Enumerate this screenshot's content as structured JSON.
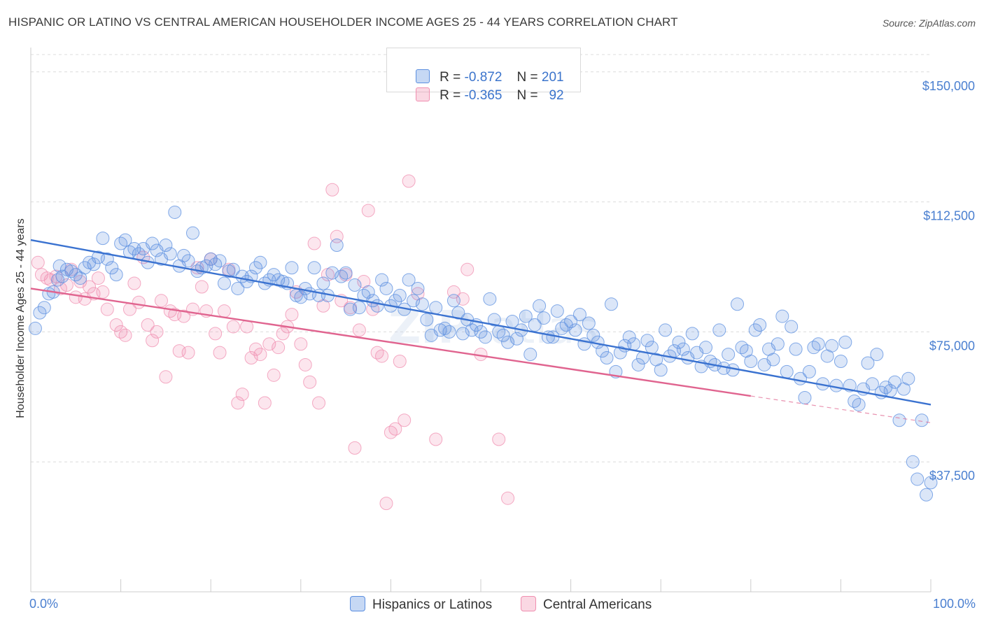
{
  "header": {
    "title": "HISPANIC OR LATINO VS CENTRAL AMERICAN HOUSEHOLDER INCOME AGES 25 - 44 YEARS CORRELATION CHART",
    "source": "Source: ZipAtlas.com"
  },
  "legend": {
    "r_label": "R =",
    "n_label": "N =",
    "rows": [
      {
        "r": "-0.872",
        "n": "201",
        "color": "#5b8fe0"
      },
      {
        "r": "-0.365",
        "n": "92",
        "color": "#f08fb0"
      }
    ]
  },
  "bottom_legend": [
    {
      "label": "Hispanics or Latinos",
      "color": "#5b8fe0"
    },
    {
      "label": "Central Americans",
      "color": "#f08fb0"
    }
  ],
  "chart_data": {
    "type": "scatter",
    "title": "HISPANIC OR LATINO VS CENTRAL AMERICAN HOUSEHOLDER INCOME AGES 25 - 44 YEARS CORRELATION CHART",
    "xlabel": "",
    "ylabel": "Householder Income Ages 25 - 44 years",
    "x_tick_labels": [
      "0.0%",
      "100.0%"
    ],
    "y_tick_labels": [
      "$37,500",
      "$75,000",
      "$112,500",
      "$150,000"
    ],
    "y_ticks": [
      37500,
      75000,
      112500,
      150000
    ],
    "xlim": [
      0,
      100
    ],
    "ylim": [
      0,
      155000
    ],
    "grid": true,
    "legend_position": "top-center",
    "series": [
      {
        "name": "Hispanics or Latinos",
        "color": "#5b8fe0",
        "trend": {
          "x": [
            0,
            100
          ],
          "y": [
            101500,
            54000
          ]
        },
        "points": [
          [
            0.5,
            76000
          ],
          [
            1,
            80500
          ],
          [
            1.5,
            82000
          ],
          [
            2,
            86000
          ],
          [
            2.5,
            86500
          ],
          [
            3,
            90000
          ],
          [
            3.2,
            94000
          ],
          [
            3.5,
            91000
          ],
          [
            4,
            93000
          ],
          [
            4.5,
            92500
          ],
          [
            5,
            91500
          ],
          [
            5.5,
            90500
          ],
          [
            6,
            93500
          ],
          [
            6.5,
            95000
          ],
          [
            7,
            94500
          ],
          [
            7.5,
            96500
          ],
          [
            8,
            102000
          ],
          [
            8.5,
            96000
          ],
          [
            9,
            93500
          ],
          [
            9.5,
            91500
          ],
          [
            10,
            100500
          ],
          [
            10.5,
            101500
          ],
          [
            11,
            98000
          ],
          [
            11.5,
            99000
          ],
          [
            12,
            97500
          ],
          [
            12.5,
            99000
          ],
          [
            13,
            95000
          ],
          [
            13.5,
            100500
          ],
          [
            14,
            98500
          ],
          [
            14.5,
            96000
          ],
          [
            15,
            100000
          ],
          [
            15.5,
            97500
          ],
          [
            16,
            109500
          ],
          [
            16.5,
            94000
          ],
          [
            17,
            97000
          ],
          [
            17.5,
            95500
          ],
          [
            18,
            103500
          ],
          [
            18.5,
            92500
          ],
          [
            19,
            93500
          ],
          [
            19.5,
            94000
          ],
          [
            20,
            96000
          ],
          [
            20.5,
            94500
          ],
          [
            21,
            95500
          ],
          [
            21.5,
            89000
          ],
          [
            22,
            92500
          ],
          [
            22.5,
            93000
          ],
          [
            23,
            87500
          ],
          [
            23.5,
            91000
          ],
          [
            24,
            89500
          ],
          [
            24.5,
            91000
          ],
          [
            25,
            93500
          ],
          [
            25.5,
            95000
          ],
          [
            26,
            89000
          ],
          [
            26.5,
            90000
          ],
          [
            27,
            91500
          ],
          [
            27.5,
            90000
          ],
          [
            28,
            89500
          ],
          [
            28.5,
            89000
          ],
          [
            29,
            93500
          ],
          [
            29.5,
            85500
          ],
          [
            30,
            85000
          ],
          [
            30.5,
            87500
          ],
          [
            31,
            86000
          ],
          [
            31.5,
            93500
          ],
          [
            32,
            85500
          ],
          [
            32.5,
            89000
          ],
          [
            33,
            85500
          ],
          [
            33.5,
            92000
          ],
          [
            34,
            100000
          ],
          [
            34.5,
            91000
          ],
          [
            35,
            92000
          ],
          [
            35.5,
            81500
          ],
          [
            36,
            88500
          ],
          [
            36.5,
            82000
          ],
          [
            37,
            85500
          ],
          [
            37.5,
            86500
          ],
          [
            38,
            84000
          ],
          [
            38.5,
            82500
          ],
          [
            39,
            90000
          ],
          [
            39.5,
            87500
          ],
          [
            40,
            82500
          ],
          [
            40.5,
            84000
          ],
          [
            41,
            85500
          ],
          [
            41.5,
            81500
          ],
          [
            42,
            90000
          ],
          [
            42.5,
            84000
          ],
          [
            43,
            87500
          ],
          [
            43.5,
            83000
          ],
          [
            44,
            78500
          ],
          [
            44.5,
            74000
          ],
          [
            45,
            82000
          ],
          [
            45.5,
            75500
          ],
          [
            46,
            76000
          ],
          [
            46.5,
            75000
          ],
          [
            47,
            84000
          ],
          [
            47.5,
            80500
          ],
          [
            48,
            74500
          ],
          [
            48.5,
            78500
          ],
          [
            49,
            75500
          ],
          [
            49.5,
            77000
          ],
          [
            50,
            75000
          ],
          [
            50.5,
            73500
          ],
          [
            51,
            84500
          ],
          [
            51.5,
            78500
          ],
          [
            52,
            75000
          ],
          [
            52.5,
            74000
          ],
          [
            53,
            72000
          ],
          [
            53.5,
            78000
          ],
          [
            54,
            73000
          ],
          [
            54.5,
            75500
          ],
          [
            55,
            79500
          ],
          [
            55.5,
            68500
          ],
          [
            56,
            77000
          ],
          [
            56.5,
            82500
          ],
          [
            57,
            79000
          ],
          [
            57.5,
            73500
          ],
          [
            58,
            73500
          ],
          [
            58.5,
            81000
          ],
          [
            59,
            76000
          ],
          [
            59.5,
            77000
          ],
          [
            60,
            78000
          ],
          [
            60.5,
            75500
          ],
          [
            61,
            80000
          ],
          [
            61.5,
            71500
          ],
          [
            62,
            77500
          ],
          [
            62.5,
            74000
          ],
          [
            63,
            72000
          ],
          [
            63.5,
            69500
          ],
          [
            64,
            67500
          ],
          [
            64.5,
            83000
          ],
          [
            65,
            63500
          ],
          [
            65.5,
            69000
          ],
          [
            66,
            71000
          ],
          [
            66.5,
            73500
          ],
          [
            67,
            71500
          ],
          [
            67.5,
            65500
          ],
          [
            68,
            67500
          ],
          [
            68.5,
            72500
          ],
          [
            69,
            70500
          ],
          [
            69.5,
            67000
          ],
          [
            70,
            64000
          ],
          [
            70.5,
            75500
          ],
          [
            71,
            68000
          ],
          [
            71.5,
            69500
          ],
          [
            72,
            72000
          ],
          [
            72.5,
            70000
          ],
          [
            73,
            67500
          ],
          [
            73.5,
            74500
          ],
          [
            74,
            69000
          ],
          [
            74.5,
            65000
          ],
          [
            75,
            70500
          ],
          [
            75.5,
            66500
          ],
          [
            76,
            65500
          ],
          [
            76.5,
            75500
          ],
          [
            77,
            64500
          ],
          [
            77.5,
            68500
          ],
          [
            78,
            64000
          ],
          [
            78.5,
            83000
          ],
          [
            79,
            70500
          ],
          [
            79.5,
            69500
          ],
          [
            80,
            66500
          ],
          [
            80.5,
            75500
          ],
          [
            81,
            77000
          ],
          [
            81.5,
            65500
          ],
          [
            82,
            70000
          ],
          [
            82.5,
            67000
          ],
          [
            83,
            71500
          ],
          [
            83.5,
            79500
          ],
          [
            84,
            63500
          ],
          [
            84.5,
            76500
          ],
          [
            85,
            70000
          ],
          [
            85.5,
            61500
          ],
          [
            86,
            56000
          ],
          [
            86.5,
            63500
          ],
          [
            87,
            70500
          ],
          [
            87.5,
            71500
          ],
          [
            88,
            60000
          ],
          [
            88.5,
            68000
          ],
          [
            89,
            71000
          ],
          [
            89.5,
            59500
          ],
          [
            90,
            66500
          ],
          [
            90.5,
            72000
          ],
          [
            91,
            59500
          ],
          [
            91.5,
            55000
          ],
          [
            92,
            54000
          ],
          [
            92.5,
            58500
          ],
          [
            93,
            66000
          ],
          [
            93.5,
            60000
          ],
          [
            94,
            68500
          ],
          [
            94.5,
            57500
          ],
          [
            95,
            59000
          ],
          [
            95.5,
            58000
          ],
          [
            96,
            60500
          ],
          [
            96.5,
            49500
          ],
          [
            97,
            58500
          ],
          [
            97.5,
            61500
          ],
          [
            98,
            37500
          ],
          [
            98.5,
            32500
          ],
          [
            99,
            49500
          ],
          [
            99.5,
            28000
          ],
          [
            100,
            31500
          ]
        ]
      },
      {
        "name": "Central Americans",
        "color": "#f08fb0",
        "trend": {
          "x": [
            0,
            80
          ],
          "y": [
            87500,
            56500
          ]
        },
        "trend_dashed": {
          "x": [
            80,
            100
          ],
          "y": [
            56500,
            48800
          ]
        },
        "points": [
          [
            0.8,
            95000
          ],
          [
            1.2,
            91500
          ],
          [
            1.8,
            90500
          ],
          [
            2.2,
            90000
          ],
          [
            2.8,
            91000
          ],
          [
            3.3,
            87500
          ],
          [
            4,
            88500
          ],
          [
            4.5,
            93000
          ],
          [
            5,
            85000
          ],
          [
            5.5,
            89500
          ],
          [
            6,
            84500
          ],
          [
            6.5,
            88000
          ],
          [
            7,
            86000
          ],
          [
            7.5,
            90500
          ],
          [
            8,
            86500
          ],
          [
            8.5,
            81500
          ],
          [
            9.5,
            77000
          ],
          [
            10,
            75000
          ],
          [
            10.5,
            74000
          ],
          [
            11,
            81500
          ],
          [
            11.5,
            89000
          ],
          [
            12,
            83500
          ],
          [
            12.5,
            96500
          ],
          [
            13,
            77000
          ],
          [
            13.5,
            72500
          ],
          [
            14,
            75000
          ],
          [
            14.5,
            84000
          ],
          [
            15,
            62000
          ],
          [
            15.5,
            81000
          ],
          [
            16,
            80000
          ],
          [
            16.5,
            69500
          ],
          [
            17,
            79500
          ],
          [
            17.5,
            69000
          ],
          [
            18,
            81500
          ],
          [
            18.5,
            93500
          ],
          [
            19,
            88000
          ],
          [
            19.5,
            81000
          ],
          [
            20,
            96000
          ],
          [
            20.5,
            74500
          ],
          [
            21,
            69000
          ],
          [
            21.5,
            81000
          ],
          [
            22,
            93000
          ],
          [
            22.5,
            76500
          ],
          [
            23,
            54500
          ],
          [
            23.5,
            57000
          ],
          [
            24,
            76500
          ],
          [
            24.5,
            67500
          ],
          [
            25,
            70000
          ],
          [
            25.5,
            68500
          ],
          [
            26,
            54500
          ],
          [
            26.5,
            71500
          ],
          [
            27,
            62500
          ],
          [
            27.5,
            70500
          ],
          [
            28,
            74500
          ],
          [
            28.5,
            76500
          ],
          [
            29,
            80000
          ],
          [
            29.5,
            86500
          ],
          [
            30,
            71500
          ],
          [
            30.5,
            65500
          ],
          [
            31,
            60500
          ],
          [
            31.5,
            100500
          ],
          [
            32,
            54500
          ],
          [
            32.5,
            82500
          ],
          [
            33,
            91500
          ],
          [
            33.5,
            116000
          ],
          [
            34,
            102500
          ],
          [
            34.5,
            84000
          ],
          [
            35,
            91500
          ],
          [
            35.5,
            82000
          ],
          [
            36,
            41500
          ],
          [
            36.5,
            75500
          ],
          [
            37,
            89500
          ],
          [
            37.5,
            110000
          ],
          [
            38,
            81500
          ],
          [
            38.5,
            69000
          ],
          [
            39,
            68000
          ],
          [
            39.5,
            25500
          ],
          [
            40,
            46000
          ],
          [
            40.5,
            47000
          ],
          [
            41,
            66500
          ],
          [
            41.5,
            49500
          ],
          [
            42,
            118500
          ],
          [
            43,
            86000
          ],
          [
            45,
            44000
          ],
          [
            47,
            86500
          ],
          [
            48,
            84500
          ],
          [
            48.5,
            93000
          ],
          [
            50,
            68500
          ],
          [
            52,
            44000
          ],
          [
            53,
            27000
          ]
        ]
      }
    ]
  }
}
